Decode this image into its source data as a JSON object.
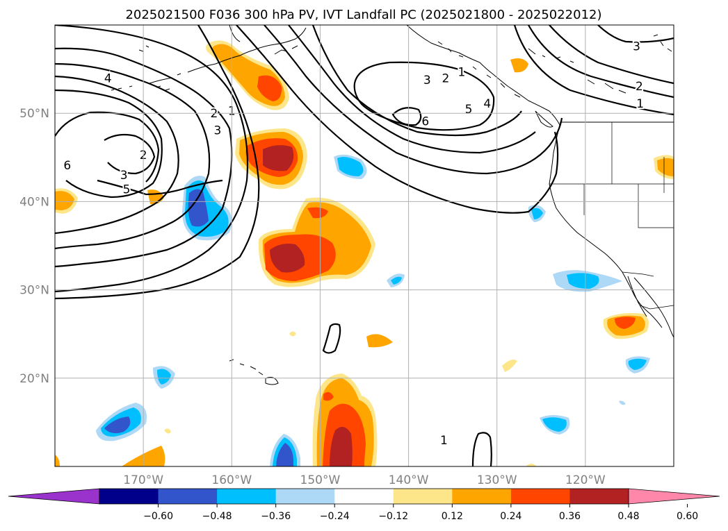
{
  "title": "2025021500 F036 300 hPa PV, IVT Landfall PC (2025021800 - 2025022012)",
  "map": {
    "projection": "PlateCarree",
    "lon_range": [
      -180,
      -110
    ],
    "lat_range": [
      10,
      60
    ],
    "lat_ticks": [
      {
        "value": 50,
        "label": "50°N"
      },
      {
        "value": 40,
        "label": "40°N"
      },
      {
        "value": 30,
        "label": "30°N"
      },
      {
        "value": 20,
        "label": "20°N"
      }
    ],
    "lon_ticks": [
      {
        "value": -170,
        "label": "170°W"
      },
      {
        "value": -160,
        "label": "160°W"
      },
      {
        "value": -150,
        "label": "150°W"
      },
      {
        "value": -140,
        "label": "140°W"
      },
      {
        "value": -130,
        "label": "130°W"
      },
      {
        "value": -120,
        "label": "120°W"
      }
    ],
    "gridlines": true
  },
  "colorbar": {
    "extend": "both",
    "colors": [
      "#9933cc",
      "#00008b",
      "#3355cc",
      "#00bfff",
      "#add8f6",
      "#ffffff",
      "#fde68a",
      "#ffa500",
      "#ff4500",
      "#b22222",
      "#ff88aa"
    ],
    "tick_labels": [
      "−0.60",
      "−0.48",
      "−0.36",
      "−0.24",
      "−0.12",
      "0.12",
      "0.24",
      "0.36",
      "0.48",
      "0.60"
    ]
  },
  "pv_contours": {
    "labels": [
      {
        "text": "4",
        "lon": -174,
        "lat": 54
      },
      {
        "text": "2",
        "lon": -162,
        "lat": 50
      },
      {
        "text": "1",
        "lon": -160,
        "lat": 50.3
      },
      {
        "text": "3",
        "lon": -161.6,
        "lat": 48.1
      },
      {
        "text": "2",
        "lon": -170,
        "lat": 45.3
      },
      {
        "text": "3",
        "lon": -172.2,
        "lat": 43
      },
      {
        "text": "6",
        "lon": -178.6,
        "lat": 44.1
      },
      {
        "text": "5",
        "lon": -171.9,
        "lat": 41.4
      },
      {
        "text": "3",
        "lon": -137.9,
        "lat": 53.8
      },
      {
        "text": "2",
        "lon": -135.8,
        "lat": 54
      },
      {
        "text": "1",
        "lon": -134,
        "lat": 54.7
      },
      {
        "text": "5",
        "lon": -133.2,
        "lat": 50.5
      },
      {
        "text": "4",
        "lon": -131.1,
        "lat": 51.1
      },
      {
        "text": "6",
        "lon": -138.1,
        "lat": 49.1
      },
      {
        "text": "3",
        "lon": -114.2,
        "lat": 57.6
      },
      {
        "text": "2",
        "lon": -113.9,
        "lat": 53.1
      },
      {
        "text": "1",
        "lon": -113.8,
        "lat": 51.1
      },
      {
        "text": "1",
        "lon": -136,
        "lat": 13
      }
    ]
  }
}
